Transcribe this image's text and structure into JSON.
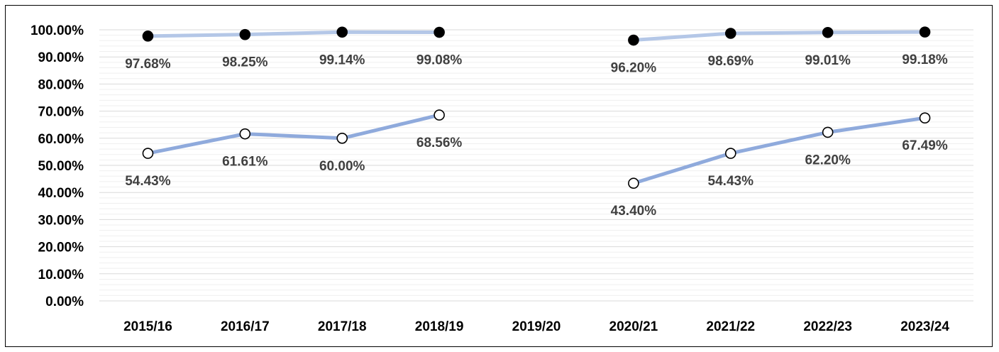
{
  "chart_data": {
    "type": "line",
    "categories": [
      "2015/16",
      "2016/17",
      "2017/18",
      "2018/19",
      "2019/20",
      "2020/21",
      "2021/22",
      "2022/23",
      "2023/24"
    ],
    "ylim": [
      0,
      100
    ],
    "y_ticks": [
      "0.00%",
      "10.00%",
      "20.00%",
      "30.00%",
      "40.00%",
      "50.00%",
      "60.00%",
      "70.00%",
      "80.00%",
      "90.00%",
      "100.00%"
    ],
    "grid": true,
    "legend": "none",
    "title": "",
    "xlabel": "",
    "ylabel": "",
    "series": [
      {
        "marker": "filled-circle",
        "line_color": "#b4c7e7",
        "marker_color": "#000000",
        "values": [
          97.68,
          98.25,
          99.14,
          99.08,
          null,
          96.2,
          98.69,
          99.01,
          99.18
        ],
        "labels": [
          "97.68%",
          "98.25%",
          "99.14%",
          "99.08%",
          "",
          "96.20%",
          "98.69%",
          "99.01%",
          "99.18%"
        ]
      },
      {
        "marker": "open-circle",
        "line_color": "#8faadc",
        "marker_color": "#ffffff",
        "values": [
          54.43,
          61.61,
          60.0,
          68.56,
          null,
          43.4,
          54.43,
          62.2,
          67.49
        ],
        "labels": [
          "54.43%",
          "61.61%",
          "60.00%",
          "68.56%",
          "",
          "43.40%",
          "54.43%",
          "62.20%",
          "67.49%"
        ]
      }
    ]
  }
}
